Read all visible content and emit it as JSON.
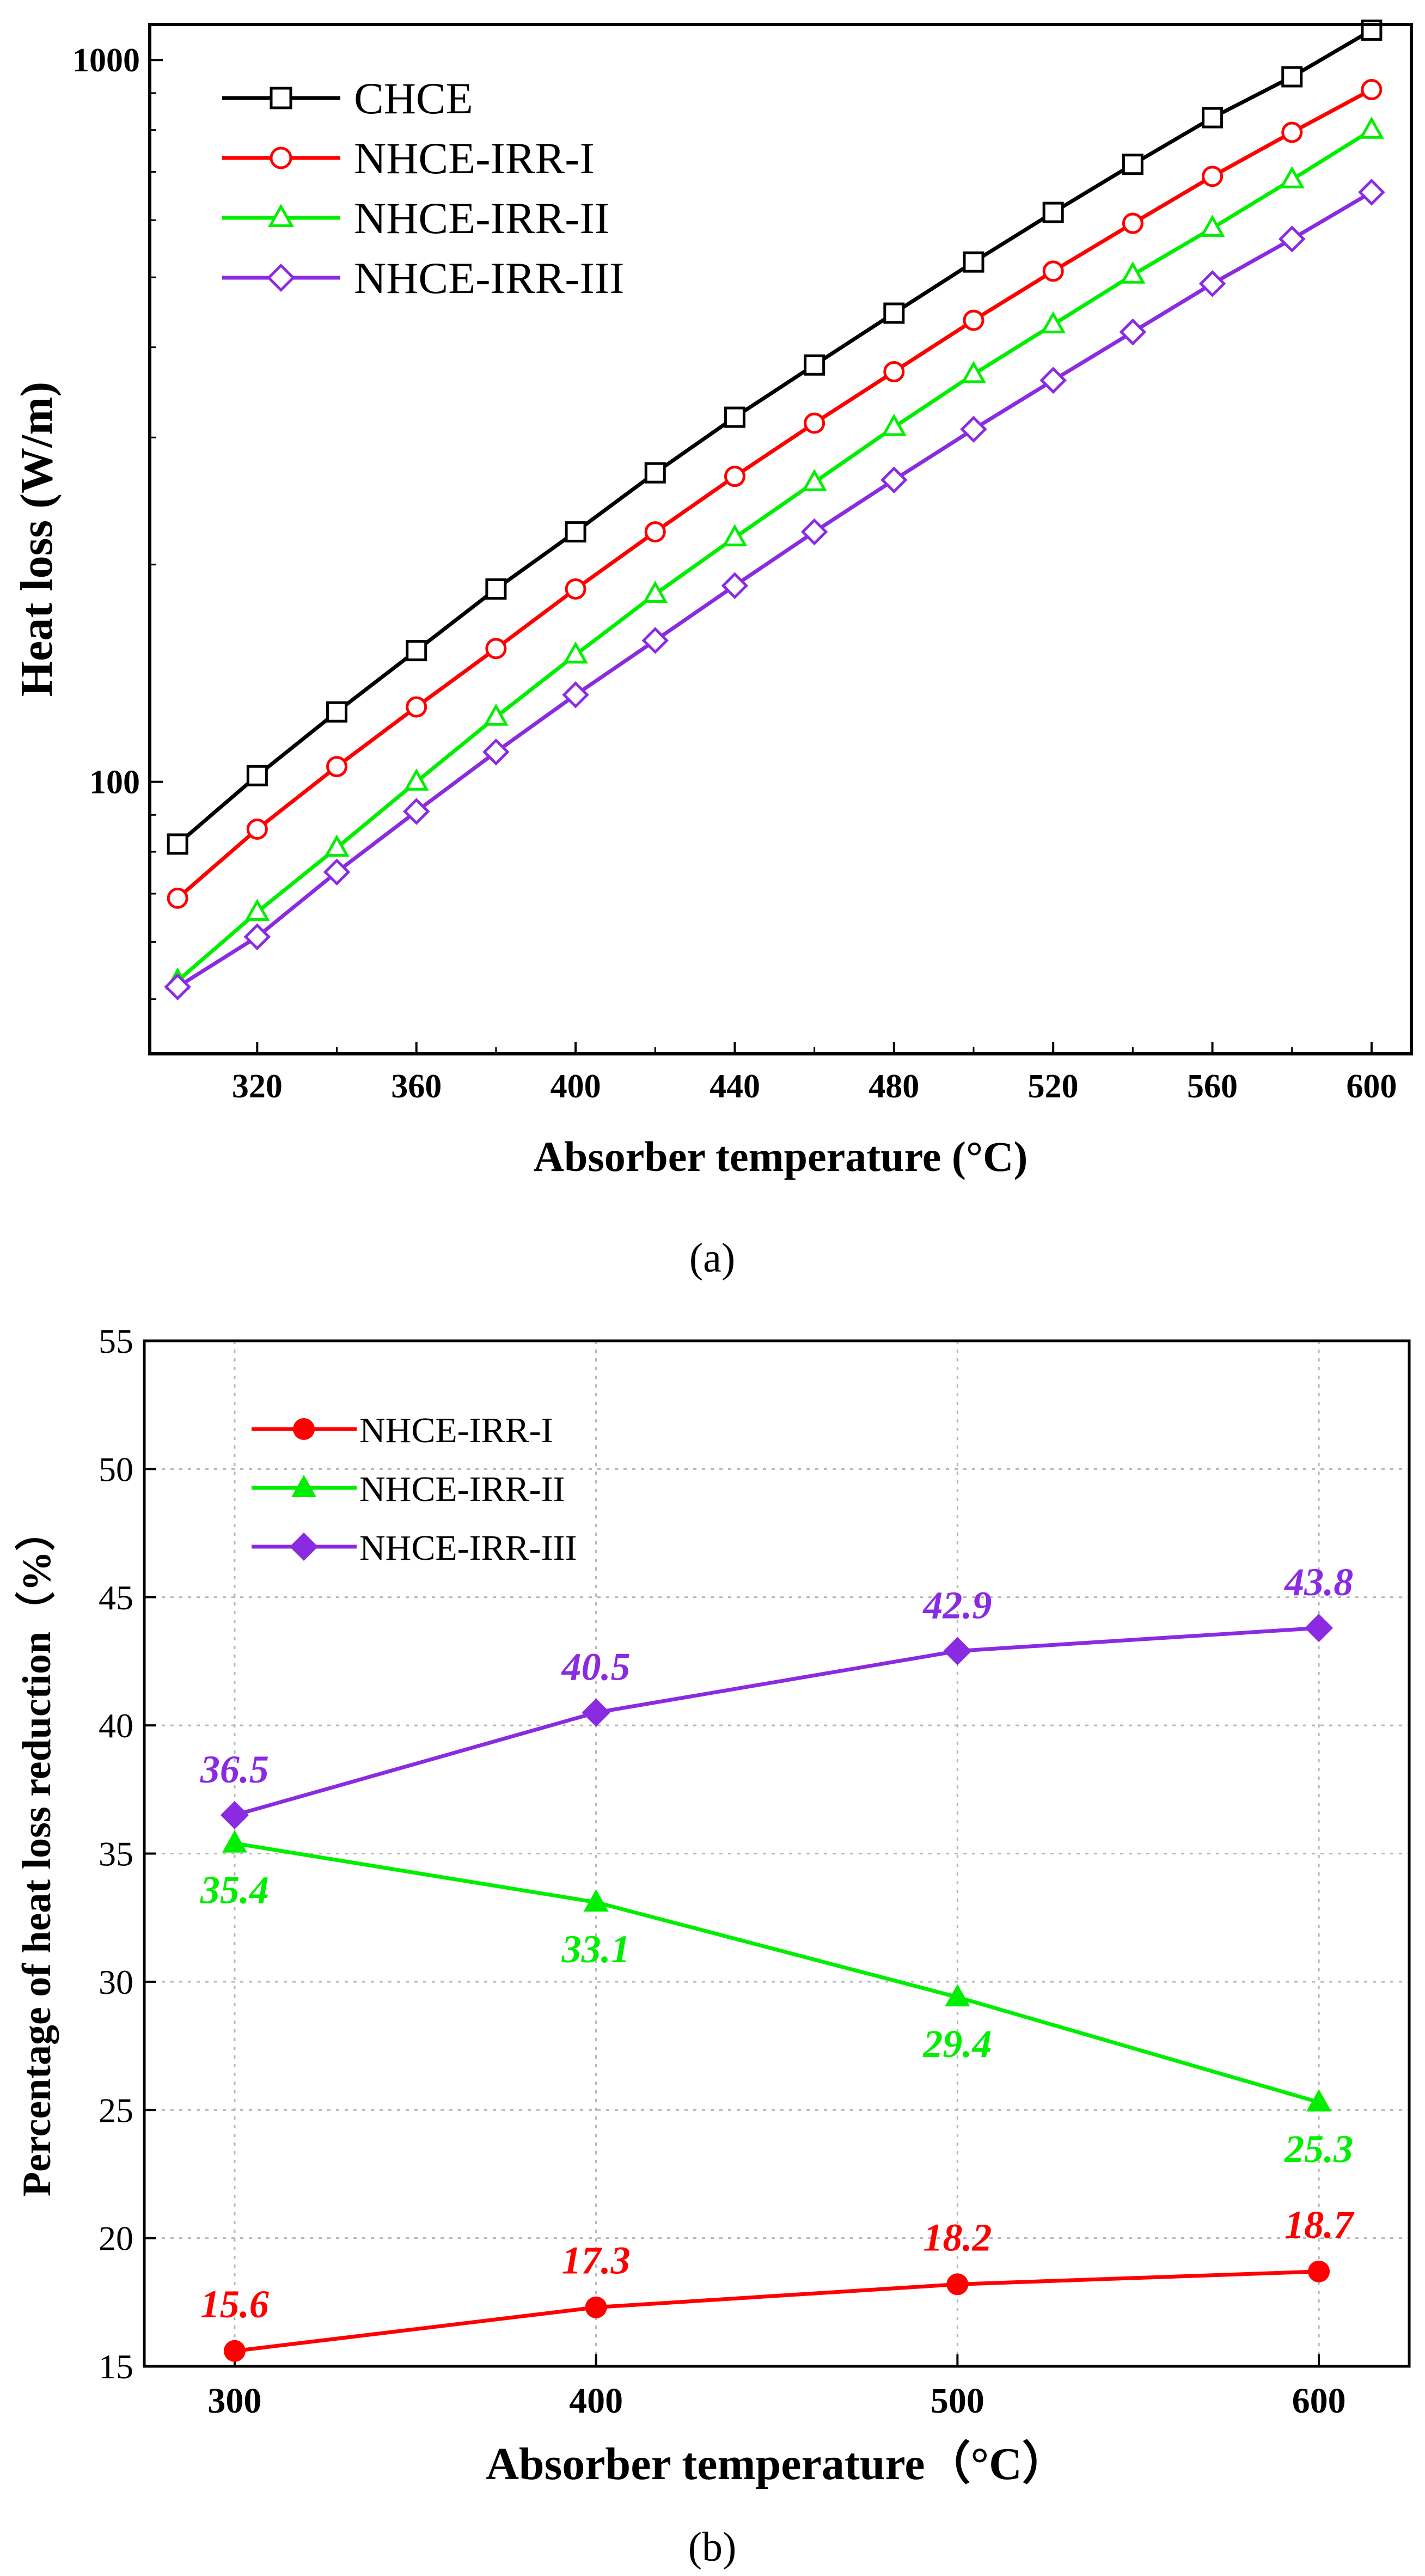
{
  "colors": {
    "CHCE": "#000000",
    "NHCE-IRR-I": "#ff0000",
    "NHCE-IRR-II": "#00ee00",
    "NHCE-IRR-III": "#8a2be2"
  },
  "chart_data": [
    {
      "panel_label": "(a)",
      "type": "line",
      "xlabel": "Absorber temperature (°C)",
      "ylabel": "Heat loss (W/m)",
      "yscale": "log",
      "xlim": [
        293,
        610
      ],
      "ylim": [
        42,
        1120
      ],
      "xticks": [
        320,
        360,
        400,
        440,
        480,
        520,
        560,
        600
      ],
      "yticks": [
        100,
        1000
      ],
      "legend_position": "top-left",
      "grid": false,
      "x": [
        300,
        320,
        340,
        360,
        380,
        400,
        420,
        440,
        460,
        480,
        500,
        520,
        540,
        560,
        580,
        600
      ],
      "series": [
        {
          "name": "CHCE",
          "marker": "square",
          "values": [
            82,
            102,
            125,
            152,
            185,
            222,
            268,
            320,
            378,
            446,
            525,
            615,
            717,
            832,
            948,
            1100
          ]
        },
        {
          "name": "NHCE-IRR-I",
          "marker": "circle",
          "values": [
            69,
            86,
            105,
            127,
            153,
            185,
            222,
            265,
            314,
            370,
            436,
            510,
            594,
            690,
            794,
            910
          ]
        },
        {
          "name": "NHCE-IRR-II",
          "marker": "triangle",
          "values": [
            53,
            66,
            81,
            100,
            123,
            150,
            182,
            218,
            260,
            310,
            367,
            430,
            504,
            585,
            683,
            800
          ]
        },
        {
          "name": "NHCE-IRR-III",
          "marker": "diamond",
          "values": [
            52,
            61,
            75,
            91,
            110,
            132,
            157,
            187,
            222,
            262,
            308,
            360,
            420,
            490,
            565,
            656
          ]
        }
      ]
    },
    {
      "panel_label": "(b)",
      "type": "line",
      "xlabel": "Absorber temperature（°C）",
      "ylabel": "Percentage of heat loss reduction（%）",
      "xlim": [
        275,
        625
      ],
      "ylim": [
        15,
        55
      ],
      "xticks": [
        300,
        400,
        500,
        600
      ],
      "yticks": [
        15,
        20,
        25,
        30,
        35,
        40,
        45,
        50,
        55
      ],
      "legend_position": "top-left",
      "grid": true,
      "x": [
        300,
        400,
        500,
        600
      ],
      "series": [
        {
          "name": "NHCE-IRR-I",
          "marker": "filled-circle",
          "values": [
            15.6,
            17.3,
            18.2,
            18.7
          ],
          "labels": [
            "15.6",
            "17.3",
            "18.2",
            "18.7"
          ]
        },
        {
          "name": "NHCE-IRR-II",
          "marker": "filled-triangle",
          "values": [
            35.4,
            33.1,
            29.4,
            25.3
          ],
          "labels": [
            "35.4",
            "33.1",
            "29.4",
            "25.3"
          ]
        },
        {
          "name": "NHCE-IRR-III",
          "marker": "filled-diamond",
          "values": [
            36.5,
            40.5,
            42.9,
            43.8
          ],
          "labels": [
            "36.5",
            "40.5",
            "42.9",
            "43.8"
          ]
        }
      ]
    }
  ]
}
